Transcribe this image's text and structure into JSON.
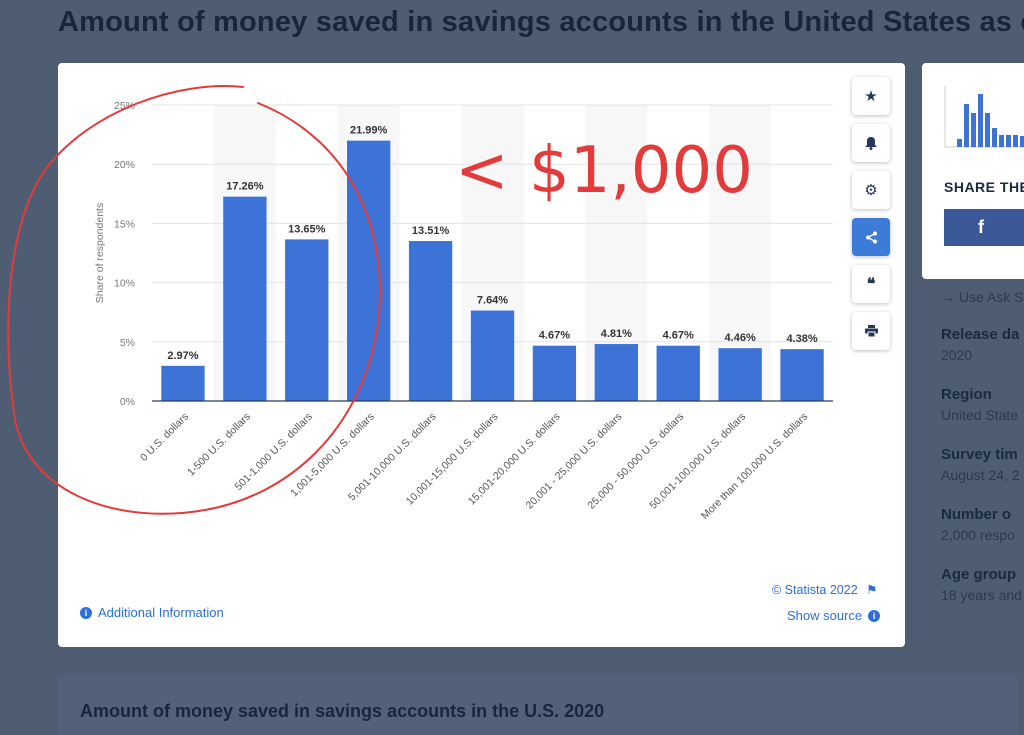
{
  "page": {
    "title": "Amount of money saved in savings accounts in the United States as o",
    "bottom_title": "Amount of money saved in savings accounts in the U.S. 2020",
    "annotation": "< $1,000"
  },
  "toolbar": {
    "star_icon": "star-icon",
    "bell_icon": "bell-icon",
    "gear_icon": "gear-icon",
    "share_icon": "share-icon",
    "quote_icon": "quote-icon",
    "print_icon": "print-icon"
  },
  "footer": {
    "additional_info": "Additional Information",
    "copyright": "© Statista 2022",
    "show_source": "Show source"
  },
  "side": {
    "share_title": "SHARE THE",
    "facebook": "f",
    "use_ask": "→ Use Ask S",
    "meta": [
      {
        "label": "Release da",
        "value": "2020"
      },
      {
        "label": "Region",
        "value": "United State"
      },
      {
        "label": "Survey tim",
        "value": "August 24, 2"
      },
      {
        "label": "Number o",
        "value": "2,000 respo"
      },
      {
        "label": "Age group",
        "value": "18 years and"
      }
    ]
  },
  "colors": {
    "bar": "#3d73d6",
    "annotation": "#e23b3b",
    "accent": "#2c6fd6"
  },
  "chart_data": {
    "type": "bar",
    "categories": [
      "0 U.S. dollars",
      "1-500 U.S. dollars",
      "501-1,000 U.S. dollars",
      "1,001-5,000 U.S. dollars",
      "5,001-10,000 U.S. dollars",
      "10,001-15,000 U.S. dollars",
      "15,001-20,000 U.S. dollars",
      "20,001 - 25,000 U.S. dollars",
      "25,000 - 50,000 U.S. dollars",
      "50,001-100,000 U.S. dollars",
      "More than 100,000 U.S. dollars"
    ],
    "values": [
      2.97,
      17.26,
      13.65,
      21.99,
      13.51,
      7.64,
      4.67,
      4.81,
      4.67,
      4.46,
      4.38
    ],
    "value_labels": [
      "2.97%",
      "17.26%",
      "13.65%",
      "21.99%",
      "13.51%",
      "7.64%",
      "4.67%",
      "4.81%",
      "4.67%",
      "4.46%",
      "4.38%"
    ],
    "yticks": [
      "0%",
      "5%",
      "10%",
      "15%",
      "20%",
      "25%"
    ],
    "ylabel": "Share of respondents",
    "xlabel": "",
    "ylim": [
      0,
      25
    ],
    "grid": true
  }
}
